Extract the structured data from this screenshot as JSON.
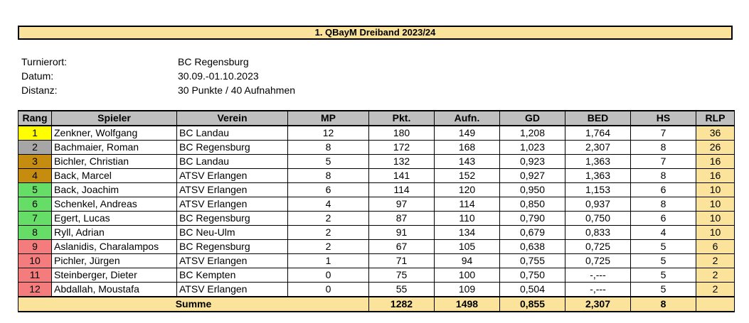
{
  "title": "1. QBayM Dreiband 2023/24",
  "info": [
    {
      "label": "Turnierort:",
      "value": "BC Regensburg"
    },
    {
      "label": "Datum:",
      "value": "30.09.-01.10.2023"
    },
    {
      "label": "Distanz:",
      "value": "30 Punkte / 40 Aufnahmen"
    }
  ],
  "table": {
    "headers": [
      "Rang",
      "Spieler",
      "Verein",
      "MP",
      "Pkt.",
      "Aufn.",
      "GD",
      "BED",
      "HS",
      "RLP"
    ],
    "rows": [
      {
        "rank": "1",
        "rank_color": "#ffff00",
        "player": "Zenkner, Wolfgang",
        "club": "BC Landau",
        "mp": "12",
        "pkt": "180",
        "aufn": "149",
        "gd": "1,208",
        "bed": "1,764",
        "hs": "7",
        "rlp": "36"
      },
      {
        "rank": "2",
        "rank_color": "#a6a6a6",
        "player": "Bachmaier, Roman",
        "club": "BC Regensburg",
        "mp": "8",
        "pkt": "172",
        "aufn": "168",
        "gd": "1,023",
        "bed": "2,307",
        "hs": "8",
        "rlp": "26"
      },
      {
        "rank": "3",
        "rank_color": "#c68c0f",
        "player": "Bichler, Christian",
        "club": "BC Landau",
        "mp": "5",
        "pkt": "132",
        "aufn": "143",
        "gd": "0,923",
        "bed": "1,363",
        "hs": "7",
        "rlp": "16"
      },
      {
        "rank": "4",
        "rank_color": "#c68c0f",
        "player": "Back, Marcel",
        "club": "ATSV Erlangen",
        "mp": "8",
        "pkt": "141",
        "aufn": "152",
        "gd": "0,927",
        "bed": "1,363",
        "hs": "8",
        "rlp": "16"
      },
      {
        "rank": "5",
        "rank_color": "#66dd66",
        "player": "Back, Joachim",
        "club": "ATSV Erlangen",
        "mp": "6",
        "pkt": "114",
        "aufn": "120",
        "gd": "0,950",
        "bed": "1,153",
        "hs": "6",
        "rlp": "10"
      },
      {
        "rank": "6",
        "rank_color": "#66dd66",
        "player": "Schenkel, Andreas",
        "club": "ATSV Erlangen",
        "mp": "4",
        "pkt": "97",
        "aufn": "114",
        "gd": "0,850",
        "bed": "0,937",
        "hs": "8",
        "rlp": "10"
      },
      {
        "rank": "7",
        "rank_color": "#66dd66",
        "player": "Egert, Lucas",
        "club": "BC Regensburg",
        "mp": "2",
        "pkt": "87",
        "aufn": "110",
        "gd": "0,790",
        "bed": "0,750",
        "hs": "6",
        "rlp": "10"
      },
      {
        "rank": "8",
        "rank_color": "#66dd66",
        "player": "Ryll, Adrian",
        "club": "BC Neu-Ulm",
        "mp": "2",
        "pkt": "91",
        "aufn": "134",
        "gd": "0,679",
        "bed": "0,833",
        "hs": "4",
        "rlp": "10"
      },
      {
        "rank": "9",
        "rank_color": "#f47c7c",
        "player": "Aslanidis, Charalampos",
        "club": "BC Regensburg",
        "mp": "2",
        "pkt": "67",
        "aufn": "105",
        "gd": "0,638",
        "bed": "0,725",
        "hs": "5",
        "rlp": "6"
      },
      {
        "rank": "10",
        "rank_color": "#f47c7c",
        "player": "Pichler, Jürgen",
        "club": "ATSV Erlangen",
        "mp": "1",
        "pkt": "71",
        "aufn": "94",
        "gd": "0,755",
        "bed": "0,725",
        "hs": "5",
        "rlp": "2"
      },
      {
        "rank": "11",
        "rank_color": "#f47c7c",
        "player": "Steinberger, Dieter",
        "club": "BC Kempten",
        "mp": "0",
        "pkt": "75",
        "aufn": "100",
        "gd": "0,750",
        "bed": "-,---",
        "hs": "5",
        "rlp": "2"
      },
      {
        "rank": "12",
        "rank_color": "#f47c7c",
        "player": "Abdallah, Moustafa",
        "club": "ATSV Erlangen",
        "mp": "0",
        "pkt": "55",
        "aufn": "109",
        "gd": "0,504",
        "bed": "-,---",
        "hs": "5",
        "rlp": "2"
      }
    ],
    "summary": {
      "label": "Summe",
      "pkt": "1282",
      "aufn": "1498",
      "gd": "0,855",
      "bed": "2,307",
      "hs": "8",
      "rlp": ""
    }
  }
}
